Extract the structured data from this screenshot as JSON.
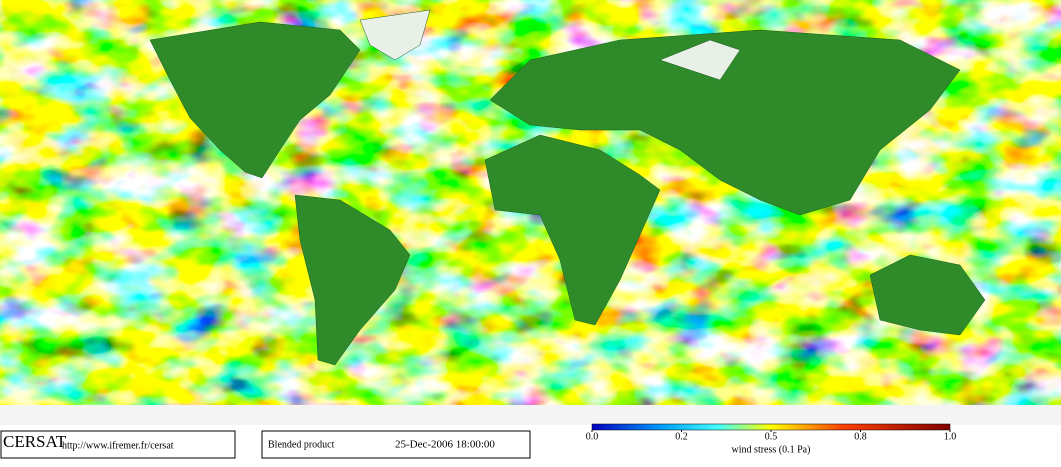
{
  "logo": "CERSAT",
  "url": "http://www.ifremer.fr/cersat",
  "product": "Blended product",
  "date": "25-Dec-2006 18:00:00",
  "colorbar": {
    "label": "wind stress (0.1 Pa)",
    "ticks": [
      {
        "value": 0,
        "label": "0.0"
      },
      0.2,
      0.5,
      0.8,
      {
        "value": 1,
        "label": "1.0"
      }
    ]
  }
}
